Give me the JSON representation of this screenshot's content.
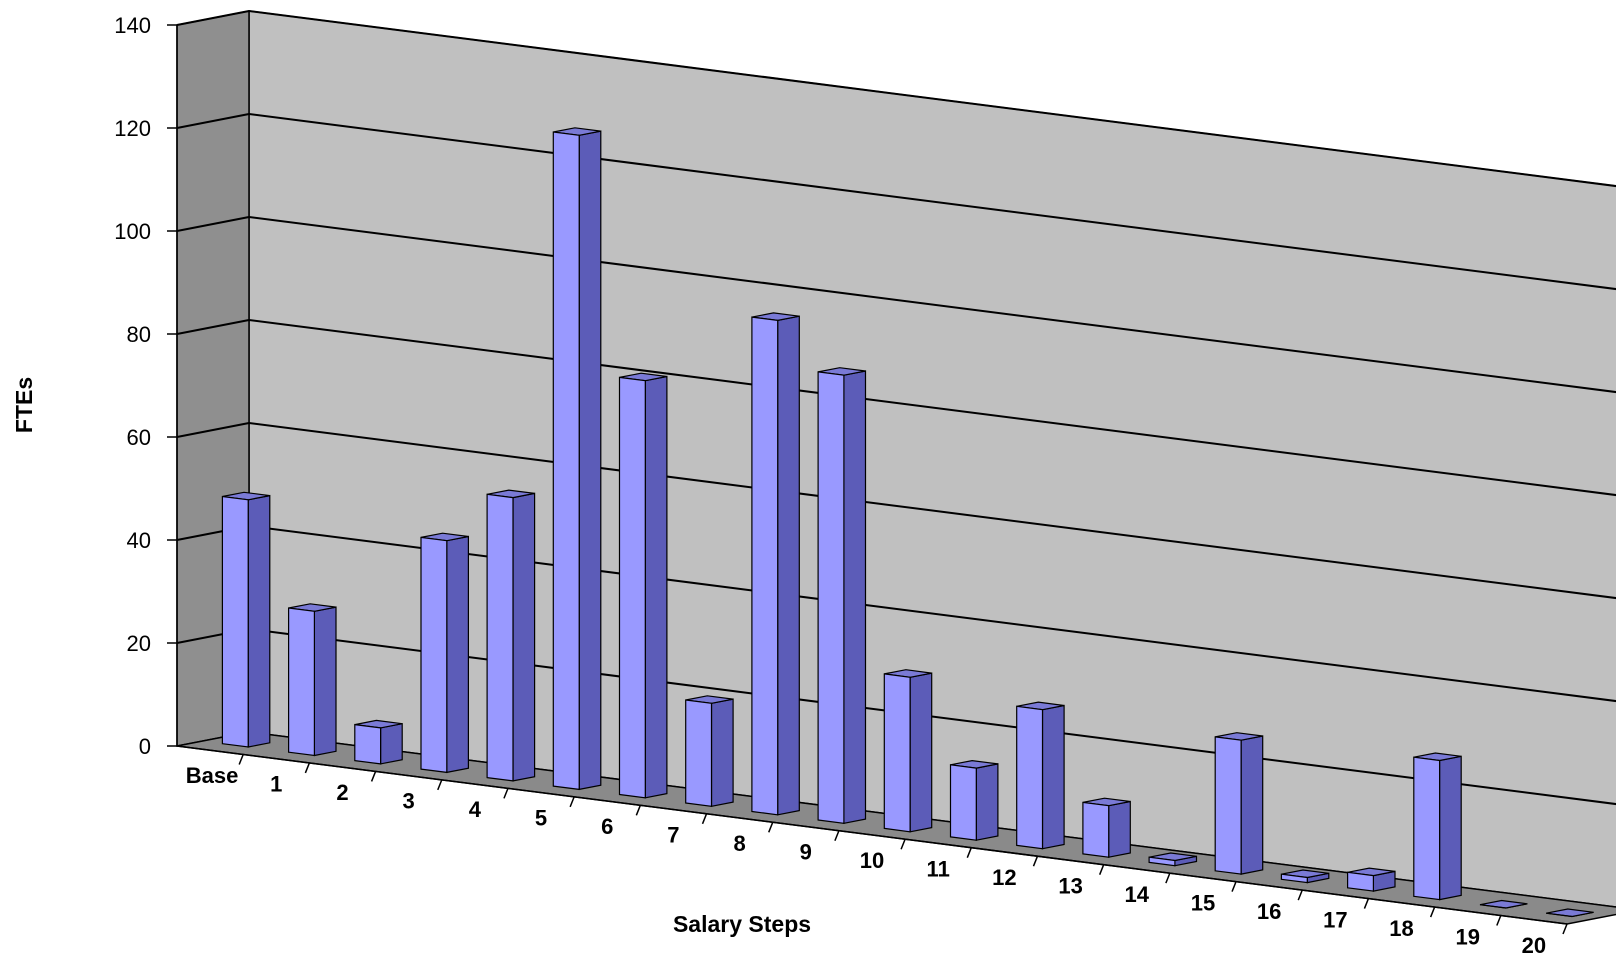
{
  "chart_data": {
    "type": "bar",
    "xlabel": "Salary Steps",
    "ylabel": "FTEs",
    "categories": [
      "Base",
      "1",
      "2",
      "3",
      "4",
      "5",
      "6",
      "7",
      "8",
      "9",
      "10",
      "11",
      "12",
      "13",
      "14",
      "15",
      "16",
      "17",
      "18",
      "19",
      "20"
    ],
    "values": [
      48,
      28,
      7,
      45,
      55,
      127,
      81,
      20,
      96,
      87,
      30,
      14,
      27,
      10,
      1,
      26,
      1,
      3,
      27,
      0,
      0
    ],
    "yticks": [
      0,
      20,
      40,
      60,
      80,
      100,
      120,
      140
    ],
    "ylim": [
      0,
      140
    ],
    "grid": true,
    "legend": "none",
    "colors": {
      "bar_front": "#9999ff",
      "bar_side": "#5c5cb8",
      "bar_top": "#7a7ad6",
      "wall_back": "#c0c0c0",
      "wall_side": "#8f8f8f",
      "floor": "#8a8a8a",
      "line": "#000000"
    }
  }
}
